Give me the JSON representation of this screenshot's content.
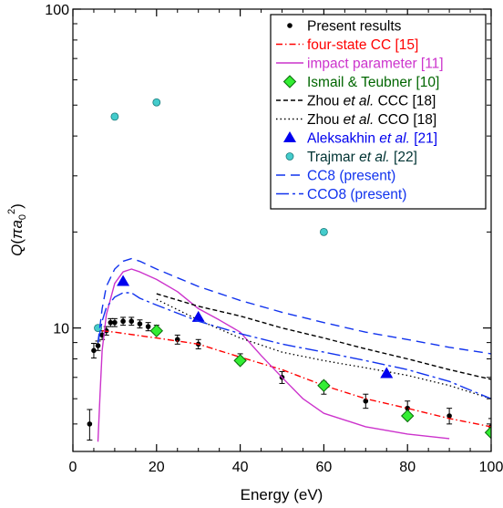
{
  "chart_data": {
    "type": "line",
    "xlabel": "Energy (eV)",
    "ylabel": "Q(πa₀²)",
    "ylabel_parts": {
      "pre": "Q(",
      "pi": "π",
      "a": "a",
      "sub": "0",
      "sup": "2",
      "post": ")"
    },
    "x_scale": "linear",
    "y_scale": "log",
    "xlim": [
      0,
      100
    ],
    "ylim": [
      4.1,
      100
    ],
    "x_ticks": [
      0,
      20,
      40,
      60,
      80,
      100
    ],
    "y_tick_labels": [
      {
        "value": 10,
        "label": "10"
      },
      {
        "value": 100,
        "label": "100"
      }
    ],
    "grid": false,
    "legend_position": "top-right",
    "series": [
      {
        "key": "present",
        "name": "Present results",
        "style": "points-errorbars",
        "color": "#000000",
        "points": [
          [
            4,
            5.0
          ],
          [
            5,
            8.5
          ],
          [
            6,
            8.8
          ],
          [
            7,
            9.5
          ],
          [
            8,
            9.8
          ],
          [
            9,
            10.4
          ],
          [
            10,
            10.4
          ],
          [
            12,
            10.5
          ],
          [
            14,
            10.5
          ],
          [
            16,
            10.3
          ],
          [
            18,
            10.1
          ],
          [
            20,
            9.9
          ],
          [
            25,
            9.2
          ],
          [
            30,
            8.9
          ],
          [
            40,
            8.0
          ],
          [
            50,
            7.0
          ],
          [
            60,
            6.5
          ],
          [
            70,
            5.9
          ],
          [
            80,
            5.6
          ],
          [
            90,
            5.3
          ],
          [
            100,
            4.9
          ]
        ],
        "errors": [
          0.55,
          0.45,
          0.3,
          0.3,
          0.3,
          0.3,
          0.3,
          0.3,
          0.3,
          0.3,
          0.3,
          0.3,
          0.3,
          0.3,
          0.3,
          0.3,
          0.3,
          0.3,
          0.3,
          0.3,
          0.3
        ]
      },
      {
        "key": "fourstate",
        "name": "four-state CC [15]",
        "style": "dashdot",
        "color": "#ff0000",
        "points": [
          [
            7,
            9.8
          ],
          [
            10,
            9.7
          ],
          [
            20,
            9.3
          ],
          [
            30,
            8.9
          ],
          [
            40,
            8.1
          ],
          [
            50,
            7.4
          ],
          [
            60,
            6.6
          ],
          [
            70,
            6.0
          ],
          [
            80,
            5.6
          ],
          [
            90,
            5.2
          ],
          [
            100,
            4.9
          ]
        ]
      },
      {
        "key": "impact",
        "name": "impact parameter [11]",
        "style": "solid",
        "color": "#cc33cc",
        "points": [
          [
            6,
            4.4
          ],
          [
            6.5,
            6.2
          ],
          [
            7,
            8.5
          ],
          [
            8,
            11
          ],
          [
            10,
            13.8
          ],
          [
            12,
            15
          ],
          [
            14,
            15.3
          ],
          [
            16,
            15
          ],
          [
            20,
            14.2
          ],
          [
            25,
            13
          ],
          [
            30,
            11.5
          ],
          [
            35,
            10.6
          ],
          [
            40,
            9.7
          ],
          [
            45,
            8.2
          ],
          [
            50,
            7.0
          ],
          [
            55,
            6.0
          ],
          [
            60,
            5.4
          ],
          [
            70,
            4.9
          ],
          [
            80,
            4.65
          ],
          [
            90,
            4.5
          ]
        ]
      },
      {
        "key": "ismail",
        "name": "Ismail & Teubner [10]",
        "style": "diamond",
        "color": "#22cc22",
        "points": [
          [
            20,
            9.8
          ],
          [
            40,
            7.9
          ],
          [
            60,
            6.6
          ],
          [
            80,
            5.3
          ],
          [
            100,
            4.7
          ]
        ]
      },
      {
        "key": "zhouccc",
        "name": "Zhou",
        "name_italic": "et al.",
        "name_suffix": "CCC [18]",
        "style": "dashed-fine",
        "color": "#000000",
        "points": [
          [
            20,
            12.8
          ],
          [
            30,
            11.7
          ],
          [
            40,
            10.9
          ],
          [
            50,
            10.0
          ],
          [
            60,
            9.3
          ],
          [
            70,
            8.6
          ],
          [
            80,
            8.0
          ],
          [
            90,
            7.4
          ],
          [
            100,
            6.9
          ]
        ]
      },
      {
        "key": "zhouccc2",
        "name": "Zhou",
        "name_italic": "et al.",
        "name_suffix": "CCO [18]",
        "style": "dotted",
        "color": "#000000",
        "points": [
          [
            20,
            12.3
          ],
          [
            30,
            10.6
          ],
          [
            40,
            9.3
          ],
          [
            50,
            8.4
          ],
          [
            60,
            7.9
          ],
          [
            70,
            7.5
          ],
          [
            75,
            7.3
          ],
          [
            80,
            7.1
          ],
          [
            90,
            6.6
          ],
          [
            100,
            6.0
          ]
        ]
      },
      {
        "key": "aleksakhin",
        "name": "Aleksakhin",
        "name_italic": "et al.",
        "name_suffix": "[21]",
        "style": "triangle",
        "color": "#0000ee",
        "points": [
          [
            12,
            14.0
          ],
          [
            30,
            10.8
          ],
          [
            75,
            7.2
          ]
        ]
      },
      {
        "key": "trajmar",
        "name": "Trajmar",
        "name_italic": "et al.",
        "name_suffix": "[22]",
        "style": "circle",
        "color": "#33bbbb",
        "points": [
          [
            6,
            10.0
          ],
          [
            10,
            46.0
          ],
          [
            20,
            51.0
          ],
          [
            60,
            20.0
          ]
        ]
      },
      {
        "key": "cc8",
        "name": "CC8 (present)",
        "style": "dashed",
        "color": "#1133ee",
        "points": [
          [
            6,
            9.0
          ],
          [
            7,
            11.5
          ],
          [
            8,
            13.5
          ],
          [
            10,
            15.3
          ],
          [
            12,
            16.2
          ],
          [
            14,
            16.5
          ],
          [
            16,
            16.2
          ],
          [
            20,
            15.3
          ],
          [
            30,
            13.5
          ],
          [
            40,
            12.2
          ],
          [
            50,
            11.2
          ],
          [
            60,
            10.4
          ],
          [
            70,
            9.7
          ],
          [
            80,
            9.2
          ],
          [
            90,
            8.7
          ],
          [
            100,
            8.3
          ]
        ]
      },
      {
        "key": "cco8",
        "name": "CCO8 (present)",
        "style": "dashdot-long",
        "color": "#1133ee",
        "points": [
          [
            6,
            9.0
          ],
          [
            7,
            10.5
          ],
          [
            8,
            11.6
          ],
          [
            10,
            12.5
          ],
          [
            12,
            12.9
          ],
          [
            14,
            12.9
          ],
          [
            16,
            12.4
          ],
          [
            20,
            11.8
          ],
          [
            30,
            10.5
          ],
          [
            40,
            9.6
          ],
          [
            50,
            8.9
          ],
          [
            60,
            8.4
          ],
          [
            70,
            7.9
          ],
          [
            80,
            7.4
          ],
          [
            90,
            6.8
          ],
          [
            100,
            6.0
          ]
        ]
      }
    ]
  }
}
